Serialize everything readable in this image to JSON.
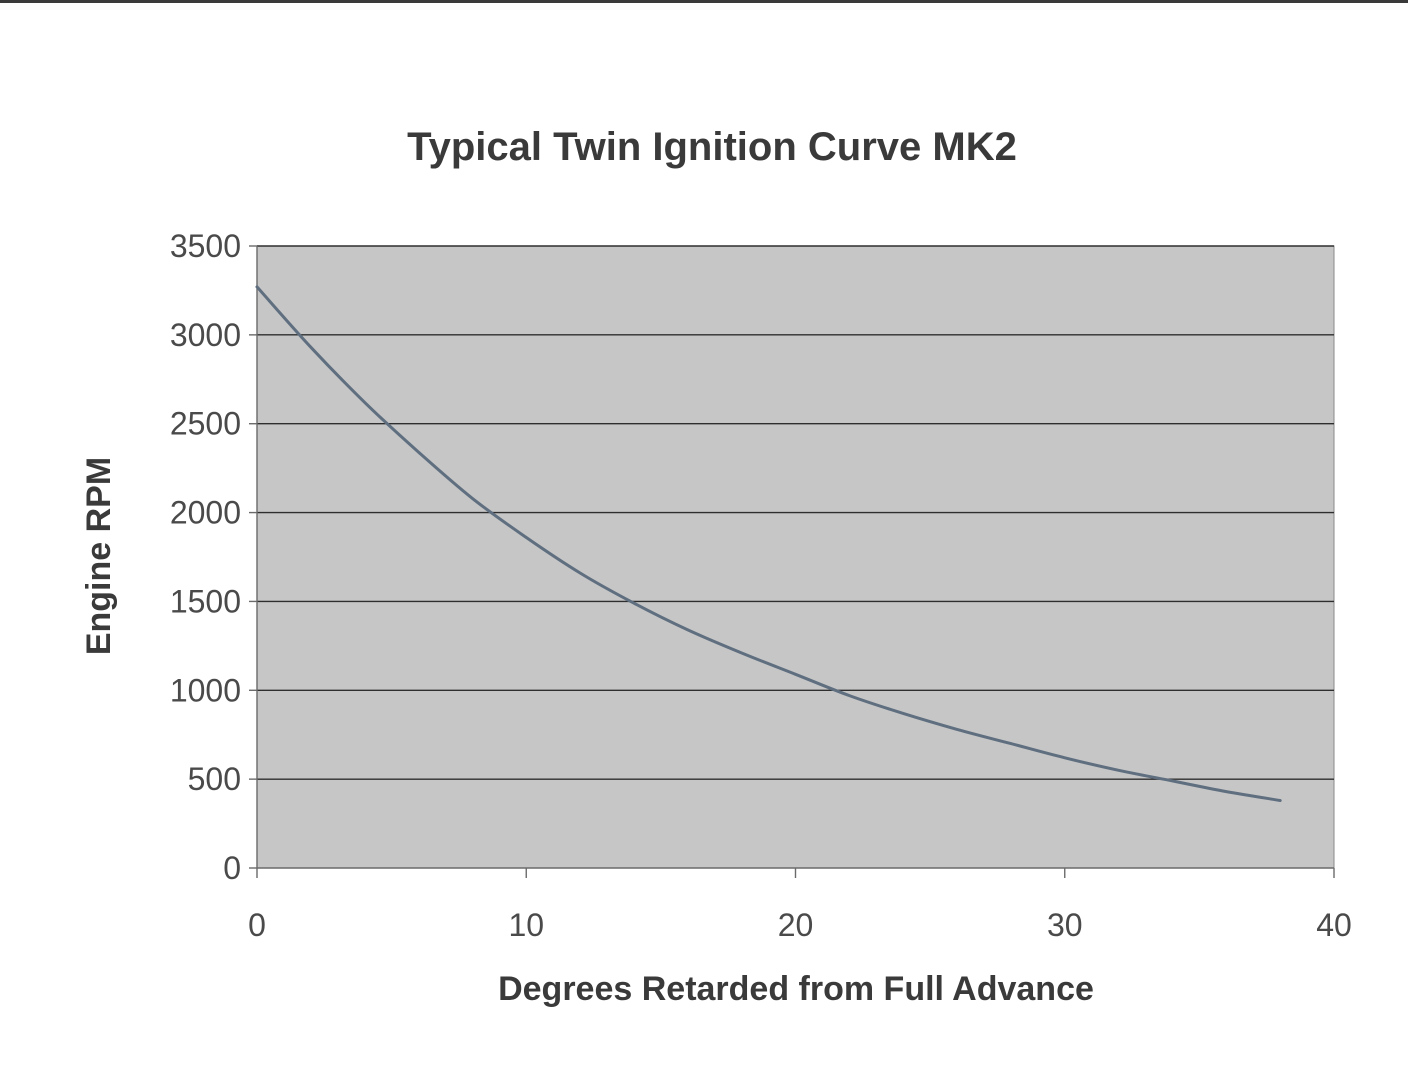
{
  "chart_data": {
    "type": "line",
    "title": "Typical Twin Ignition Curve MK2",
    "xlabel": "Degrees Retarded from Full Advance",
    "ylabel": "Engine RPM",
    "xlim": [
      0,
      40
    ],
    "ylim": [
      0,
      3500
    ],
    "xticks": [
      "0",
      "10",
      "20",
      "30",
      "40"
    ],
    "yticks": [
      "0",
      "500",
      "1000",
      "1500",
      "2000",
      "2500",
      "3000",
      "3500"
    ],
    "grid": "horizontal",
    "legend": "none",
    "colors": {
      "plot_background": "#c6c6c6",
      "line": "#5f6f80",
      "gridline": "#2e2e2e",
      "text": "#3a3a3a"
    },
    "series": [
      {
        "x": [
          0,
          2,
          4,
          6,
          8,
          10,
          12,
          14,
          16,
          18,
          20,
          22,
          24,
          26,
          28,
          30,
          32,
          34,
          36,
          38
        ],
        "values": [
          3270,
          2930,
          2620,
          2340,
          2080,
          1860,
          1660,
          1490,
          1340,
          1210,
          1090,
          970,
          870,
          780,
          700,
          620,
          550,
          490,
          430,
          380
        ]
      }
    ]
  }
}
